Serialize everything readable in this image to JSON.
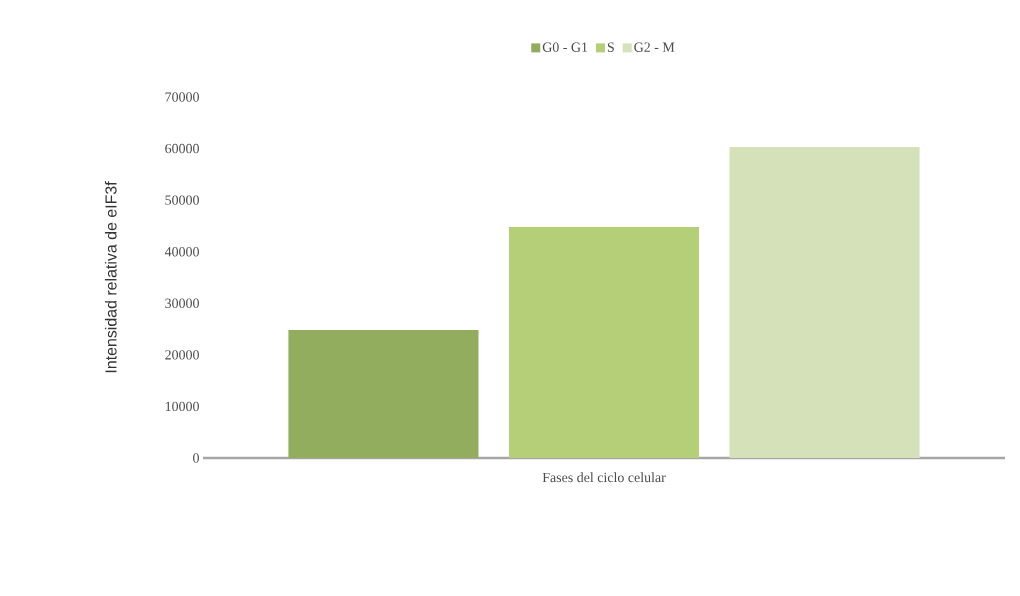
{
  "chart_data": {
    "type": "bar",
    "xlabel": "Fases del ciclo celular",
    "ylabel": "Intensidad relativa de eIF3f",
    "categories": [
      null
    ],
    "series": [
      {
        "name": "G0 - G1",
        "color": "#93ad5e",
        "values": [
          24800
        ]
      },
      {
        "name": "S",
        "color": "#b5cf78",
        "values": [
          44800
        ]
      },
      {
        "name": "G2 - M",
        "color": "#d5e2b9",
        "values": [
          60300
        ]
      }
    ],
    "ylim": [
      0,
      70000
    ],
    "yticks": [
      0,
      10000,
      20000,
      30000,
      40000,
      50000,
      60000,
      70000
    ],
    "legend": "top"
  }
}
